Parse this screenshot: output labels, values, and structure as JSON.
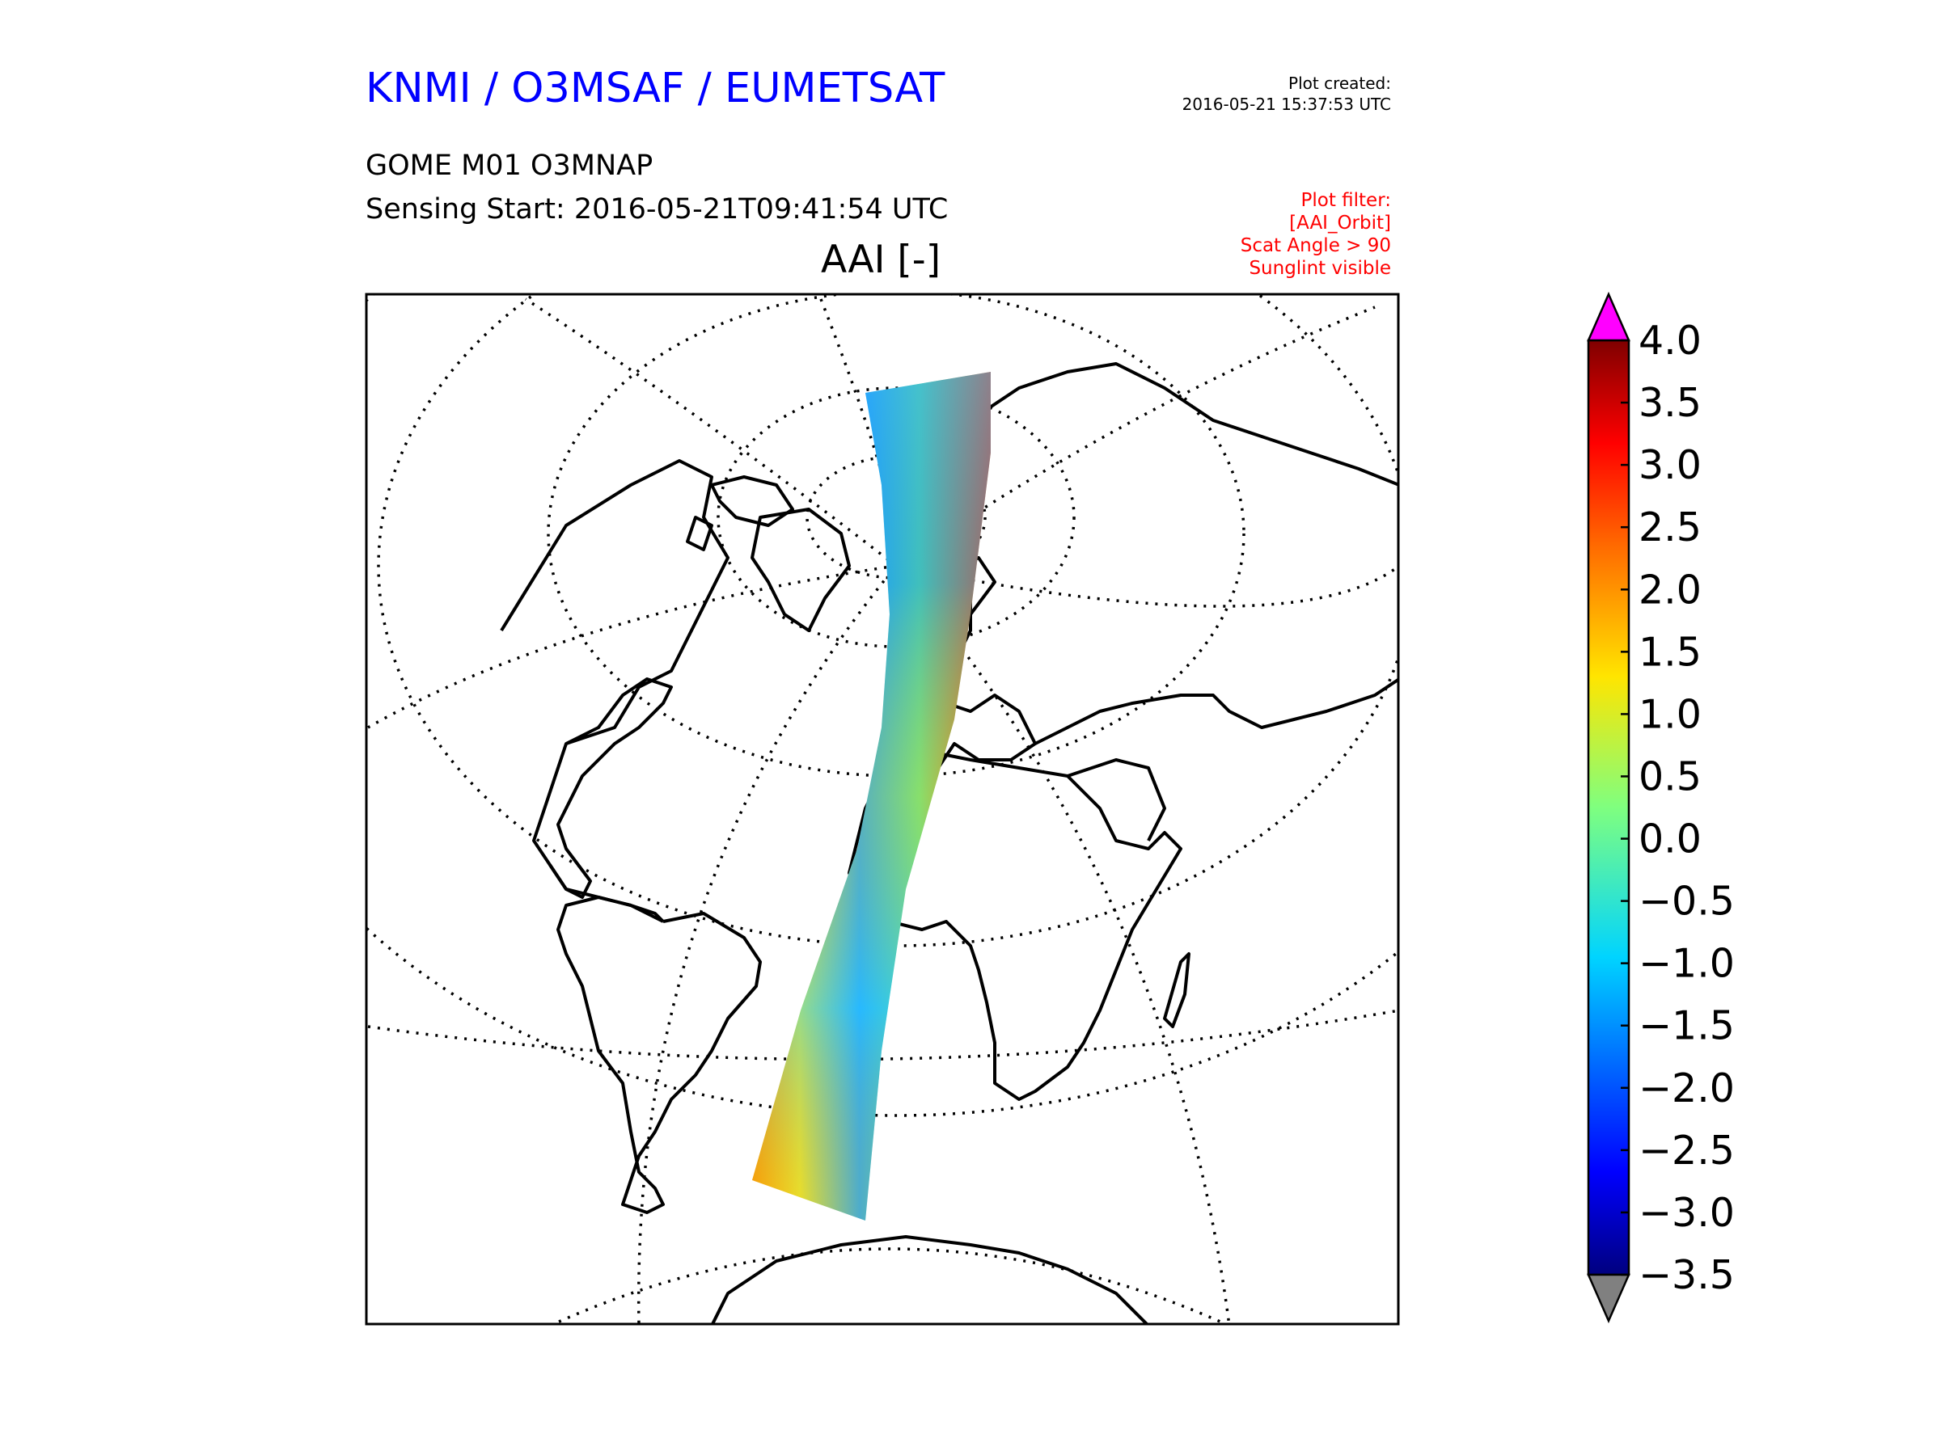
{
  "header": {
    "org_title": "KNMI / O3MSAF / EUMETSAT",
    "product_name": "GOME M01 O3MNAP",
    "sensing_start": "Sensing Start: 2016-05-21T09:41:54 UTC",
    "plot_created_label": "Plot created:",
    "plot_created_time": "2016-05-21 15:37:53 UTC",
    "plot_filter_lines": [
      "Plot filter:",
      "[AAI_Orbit]",
      "Scat Angle > 90",
      "Sunglint visible"
    ]
  },
  "map": {
    "title": "AAI [-]",
    "projection": "orthographic",
    "center": "North Atlantic",
    "gridlines": "dotted",
    "coastlines": "black"
  },
  "colorbar": {
    "ticks": [
      "4.0",
      "3.5",
      "3.0",
      "2.5",
      "2.0",
      "1.5",
      "1.0",
      "0.5",
      "0.0",
      "−0.5",
      "−1.0",
      "−1.5",
      "−2.0",
      "−2.5",
      "−3.0",
      "−3.5"
    ],
    "min": -3.5,
    "max": 4.0,
    "colormap": "jet",
    "over_color": "#ff00ff",
    "under_color": "#808080"
  },
  "colors": {
    "title_blue": "#0000ff",
    "filter_red": "#ff0000"
  }
}
